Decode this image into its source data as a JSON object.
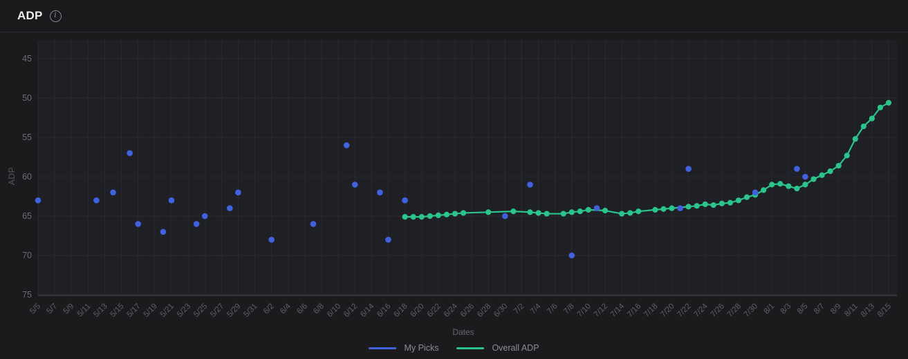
{
  "header": {
    "title": "ADP",
    "info_icon": "info-icon"
  },
  "chart_data": {
    "type": "line",
    "title": "ADP",
    "xlabel": "Dates",
    "ylabel": "ADP",
    "y_ticks": [
      45,
      50,
      55,
      60,
      65,
      70,
      75
    ],
    "ylim": [
      45,
      75
    ],
    "y_axis_inverted": true,
    "grid": true,
    "legend_position": "bottom",
    "x_tick_labels": [
      "5/5",
      "5/7",
      "5/9",
      "5/11",
      "5/13",
      "5/15",
      "5/17",
      "5/19",
      "5/21",
      "5/23",
      "5/25",
      "5/27",
      "5/29",
      "5/31",
      "6/2",
      "6/4",
      "6/6",
      "6/8",
      "6/10",
      "6/12",
      "6/14",
      "6/16",
      "6/18",
      "6/20",
      "6/22",
      "6/24",
      "6/26",
      "6/28",
      "6/30",
      "7/2",
      "7/4",
      "7/6",
      "7/8",
      "7/10",
      "7/12",
      "7/14",
      "7/16",
      "7/18",
      "7/20",
      "7/22",
      "7/24",
      "7/26",
      "7/28",
      "7/30",
      "8/1",
      "8/3",
      "8/5",
      "8/7",
      "8/9",
      "8/11",
      "8/13",
      "8/15"
    ],
    "x_range": {
      "start": "5/5",
      "end": "8/15"
    },
    "series": [
      {
        "name": "My Picks",
        "type": "scatter",
        "color": "#4162de",
        "points": [
          {
            "date": "5/5",
            "adp": 63
          },
          {
            "date": "5/12",
            "adp": 63
          },
          {
            "date": "5/14",
            "adp": 62
          },
          {
            "date": "5/16",
            "adp": 57
          },
          {
            "date": "5/17",
            "adp": 66
          },
          {
            "date": "5/20",
            "adp": 67
          },
          {
            "date": "5/21",
            "adp": 63
          },
          {
            "date": "5/24",
            "adp": 66
          },
          {
            "date": "5/25",
            "adp": 65
          },
          {
            "date": "5/28",
            "adp": 64
          },
          {
            "date": "5/29",
            "adp": 62
          },
          {
            "date": "6/2",
            "adp": 68
          },
          {
            "date": "6/7",
            "adp": 66
          },
          {
            "date": "6/11",
            "adp": 56
          },
          {
            "date": "6/12",
            "adp": 61
          },
          {
            "date": "6/15",
            "adp": 62
          },
          {
            "date": "6/16",
            "adp": 68
          },
          {
            "date": "6/18",
            "adp": 63
          },
          {
            "date": "6/30",
            "adp": 65
          },
          {
            "date": "7/3",
            "adp": 61
          },
          {
            "date": "7/8",
            "adp": 70
          },
          {
            "date": "7/11",
            "adp": 64
          },
          {
            "date": "7/21",
            "adp": 64
          },
          {
            "date": "7/22",
            "adp": 59
          },
          {
            "date": "7/30",
            "adp": 62
          },
          {
            "date": "8/4",
            "adp": 59
          },
          {
            "date": "8/5",
            "adp": 60
          }
        ]
      },
      {
        "name": "Overall ADP",
        "type": "line",
        "color": "#2bc48d",
        "points": [
          {
            "date": "6/18",
            "adp": 65.1
          },
          {
            "date": "6/19",
            "adp": 65.1
          },
          {
            "date": "6/20",
            "adp": 65.1
          },
          {
            "date": "6/21",
            "adp": 65.0
          },
          {
            "date": "6/22",
            "adp": 64.9
          },
          {
            "date": "6/23",
            "adp": 64.8
          },
          {
            "date": "6/24",
            "adp": 64.7
          },
          {
            "date": "6/25",
            "adp": 64.6
          },
          {
            "date": "6/28",
            "adp": 64.5
          },
          {
            "date": "7/1",
            "adp": 64.4
          },
          {
            "date": "7/3",
            "adp": 64.5
          },
          {
            "date": "7/4",
            "adp": 64.6
          },
          {
            "date": "7/5",
            "adp": 64.7
          },
          {
            "date": "7/7",
            "adp": 64.7
          },
          {
            "date": "7/8",
            "adp": 64.5
          },
          {
            "date": "7/9",
            "adp": 64.4
          },
          {
            "date": "7/10",
            "adp": 64.2
          },
          {
            "date": "7/12",
            "adp": 64.3
          },
          {
            "date": "7/14",
            "adp": 64.7
          },
          {
            "date": "7/15",
            "adp": 64.6
          },
          {
            "date": "7/16",
            "adp": 64.4
          },
          {
            "date": "7/18",
            "adp": 64.2
          },
          {
            "date": "7/19",
            "adp": 64.1
          },
          {
            "date": "7/20",
            "adp": 64.0
          },
          {
            "date": "7/22",
            "adp": 63.8
          },
          {
            "date": "7/23",
            "adp": 63.7
          },
          {
            "date": "7/24",
            "adp": 63.5
          },
          {
            "date": "7/25",
            "adp": 63.6
          },
          {
            "date": "7/26",
            "adp": 63.4
          },
          {
            "date": "7/27",
            "adp": 63.3
          },
          {
            "date": "7/28",
            "adp": 63.0
          },
          {
            "date": "7/29",
            "adp": 62.6
          },
          {
            "date": "7/30",
            "adp": 62.3
          },
          {
            "date": "7/31",
            "adp": 61.7
          },
          {
            "date": "8/1",
            "adp": 61.0
          },
          {
            "date": "8/2",
            "adp": 60.9
          },
          {
            "date": "8/3",
            "adp": 61.2
          },
          {
            "date": "8/4",
            "adp": 61.5
          },
          {
            "date": "8/5",
            "adp": 61.0
          },
          {
            "date": "8/6",
            "adp": 60.3
          },
          {
            "date": "8/7",
            "adp": 59.8
          },
          {
            "date": "8/8",
            "adp": 59.3
          },
          {
            "date": "8/9",
            "adp": 58.6
          },
          {
            "date": "8/10",
            "adp": 57.3
          },
          {
            "date": "8/11",
            "adp": 55.2
          },
          {
            "date": "8/12",
            "adp": 53.6
          },
          {
            "date": "8/13",
            "adp": 52.6
          },
          {
            "date": "8/14",
            "adp": 51.2
          },
          {
            "date": "8/15",
            "adp": 50.6
          }
        ]
      }
    ]
  },
  "colors": {
    "page_bg": "#1b1b1e",
    "plot_bg": "#1f2025",
    "gridline": "#292a2f",
    "axis_line": "#43444a",
    "tick_text": "#5e6067",
    "y_tick_text": "#6c6e74",
    "my_picks_blue": "#4162de",
    "overall_adp_green": "#2bc48d"
  }
}
